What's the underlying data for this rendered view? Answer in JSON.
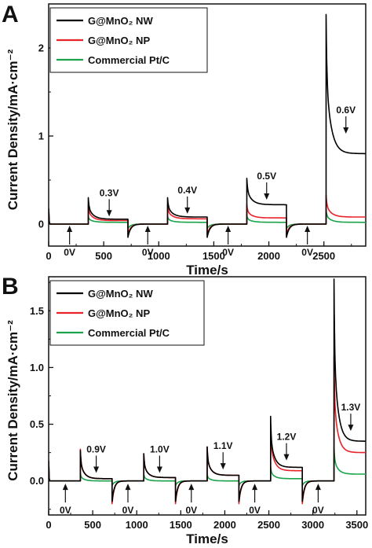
{
  "chart_data": [
    {
      "type": "line",
      "panel": "A",
      "xlabel": "Time/s",
      "ylabel": "Current Density/mA·cm⁻²",
      "xlim": [
        0,
        2880
      ],
      "ylim": [
        -0.25,
        2.5
      ],
      "xticks": [
        0,
        500,
        1000,
        1500,
        2000,
        2500
      ],
      "yticks": [
        0,
        1,
        2
      ],
      "legend_position": "top-left",
      "series": [
        {
          "name": "G@MnO₂ NW",
          "color": "#000000",
          "segments": [
            {
              "t0": 360,
              "t1": 720,
              "peak": 0.3,
              "base": 0.055
            },
            {
              "t0": 1080,
              "t1": 1440,
              "peak": 0.3,
              "base": 0.08
            },
            {
              "t0": 1800,
              "t1": 2160,
              "peak": 0.52,
              "base": 0.22
            },
            {
              "t0": 2520,
              "t1": 2880,
              "peak": 2.38,
              "base": 0.8
            }
          ],
          "off_neg": -0.15
        },
        {
          "name": "G@MnO₂ NP",
          "color": "#e8232a",
          "segments": [
            {
              "t0": 360,
              "t1": 720,
              "peak": 0.22,
              "base": 0.04
            },
            {
              "t0": 1080,
              "t1": 1440,
              "peak": 0.22,
              "base": 0.06
            },
            {
              "t0": 1800,
              "t1": 2160,
              "peak": 0.22,
              "base": 0.07
            },
            {
              "t0": 2520,
              "t1": 2880,
              "peak": 0.33,
              "base": 0.08
            }
          ],
          "off_neg": -0.12
        },
        {
          "name": "Commercial Pt/C",
          "color": "#1aa34a",
          "segments": [
            {
              "t0": 360,
              "t1": 720,
              "peak": 0.09,
              "base": 0.02
            },
            {
              "t0": 1080,
              "t1": 1440,
              "peak": 0.09,
              "base": 0.02
            },
            {
              "t0": 1800,
              "t1": 2160,
              "peak": 0.1,
              "base": 0.02
            },
            {
              "t0": 2520,
              "t1": 2880,
              "peak": 0.16,
              "base": 0.02
            }
          ],
          "off_neg": -0.05
        }
      ],
      "annotations": [
        {
          "label": "0V",
          "x": 190,
          "y": 0,
          "dir": "up"
        },
        {
          "label": "0.3V",
          "x": 550,
          "y": 0.06,
          "dir": "down"
        },
        {
          "label": "0V",
          "x": 900,
          "y": 0,
          "dir": "up"
        },
        {
          "label": "0.4V",
          "x": 1260,
          "y": 0.09,
          "dir": "down"
        },
        {
          "label": "0V",
          "x": 1630,
          "y": 0,
          "dir": "up"
        },
        {
          "label": "0.5V",
          "x": 1980,
          "y": 0.25,
          "dir": "down"
        },
        {
          "label": "0V",
          "x": 2350,
          "y": 0,
          "dir": "up"
        },
        {
          "label": "0.6V",
          "x": 2700,
          "y": 1.0,
          "dir": "down"
        }
      ]
    },
    {
      "type": "line",
      "panel": "B",
      "xlabel": "Time/s",
      "ylabel": "Current Density/mA·cm⁻²",
      "xlim": [
        0,
        3600
      ],
      "ylim": [
        -0.3,
        1.8
      ],
      "xticks": [
        0,
        500,
        1000,
        1500,
        2000,
        2500,
        3000,
        3500
      ],
      "yticks": [
        0.0,
        0.5,
        1.0,
        1.5
      ],
      "legend_position": "top-left",
      "series": [
        {
          "name": "G@MnO₂ NW",
          "color": "#000000",
          "segments": [
            {
              "t0": 360,
              "t1": 720,
              "peak": 0.27,
              "base": 0.02
            },
            {
              "t0": 1080,
              "t1": 1440,
              "peak": 0.24,
              "base": 0.03
            },
            {
              "t0": 1800,
              "t1": 2160,
              "peak": 0.3,
              "base": 0.05
            },
            {
              "t0": 2520,
              "t1": 2880,
              "peak": 0.57,
              "base": 0.12
            },
            {
              "t0": 3240,
              "t1": 3600,
              "peak": 1.78,
              "base": 0.35
            }
          ],
          "off_neg": -0.18
        },
        {
          "name": "G@MnO₂ NP",
          "color": "#e8232a",
          "segments": [
            {
              "t0": 360,
              "t1": 720,
              "peak": 0.28,
              "base": 0.02
            },
            {
              "t0": 1080,
              "t1": 1440,
              "peak": 0.24,
              "base": 0.03
            },
            {
              "t0": 1800,
              "t1": 2160,
              "peak": 0.3,
              "base": 0.05
            },
            {
              "t0": 2520,
              "t1": 2880,
              "peak": 0.51,
              "base": 0.09
            },
            {
              "t0": 3240,
              "t1": 3600,
              "peak": 1.1,
              "base": 0.25
            }
          ],
          "off_neg": -0.2
        },
        {
          "name": "Commercial Pt/C",
          "color": "#1aa34a",
          "segments": [
            {
              "t0": 360,
              "t1": 720,
              "peak": 0.07,
              "base": 0.0
            },
            {
              "t0": 1080,
              "t1": 1440,
              "peak": 0.06,
              "base": 0.0
            },
            {
              "t0": 1800,
              "t1": 2160,
              "peak": 0.06,
              "base": 0.0
            },
            {
              "t0": 2520,
              "t1": 2880,
              "peak": 0.13,
              "base": 0.02
            },
            {
              "t0": 3240,
              "t1": 3600,
              "peak": 0.3,
              "base": 0.06
            }
          ],
          "off_neg": -0.04
        }
      ],
      "annotations": [
        {
          "label": "0V",
          "x": 190,
          "y": -0.01,
          "dir": "up"
        },
        {
          "label": "0.9V",
          "x": 540,
          "y": 0.05,
          "dir": "down"
        },
        {
          "label": "0V",
          "x": 900,
          "y": -0.01,
          "dir": "up"
        },
        {
          "label": "1.0V",
          "x": 1260,
          "y": 0.05,
          "dir": "down"
        },
        {
          "label": "0V",
          "x": 1620,
          "y": -0.01,
          "dir": "up"
        },
        {
          "label": "1.1V",
          "x": 1980,
          "y": 0.08,
          "dir": "down"
        },
        {
          "label": "0V",
          "x": 2340,
          "y": -0.01,
          "dir": "up"
        },
        {
          "label": "1.2V",
          "x": 2700,
          "y": 0.16,
          "dir": "down"
        },
        {
          "label": "0V",
          "x": 3060,
          "y": -0.01,
          "dir": "up"
        },
        {
          "label": "1.3V",
          "x": 3430,
          "y": 0.42,
          "dir": "down"
        }
      ]
    }
  ]
}
